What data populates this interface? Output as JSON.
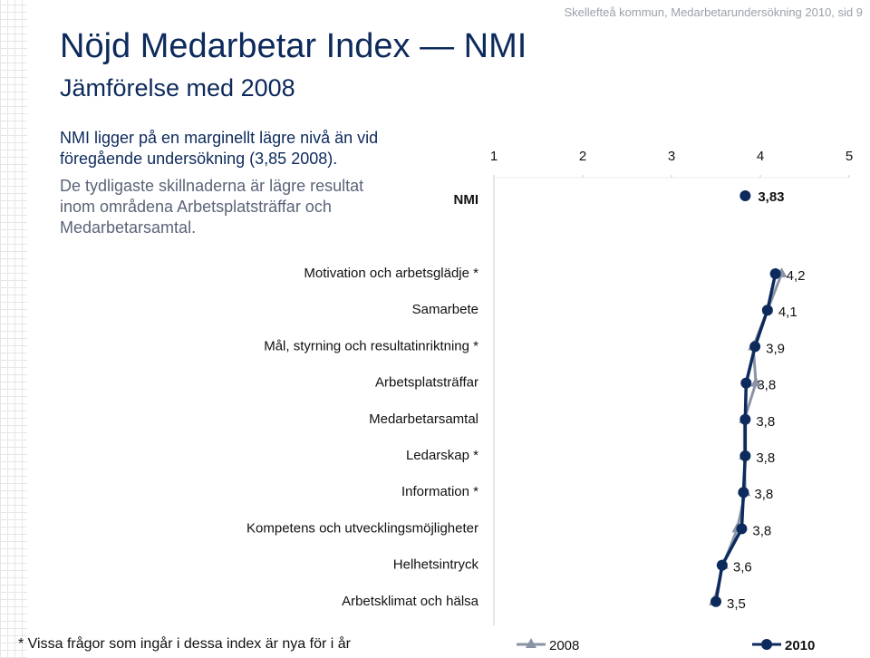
{
  "header": "Skellefteå kommun, Medarbetarundersökning 2010,  sid 9",
  "title": "Nöjd Medarbetar Index — NMI",
  "subtitle": "Jämförelse med 2008",
  "paragraphs": [
    "NMI ligger på en marginellt lägre nivå än vid föregående undersökning (3,85 2008).",
    "De tydligaste skillnaderna är lägre resultat inom områdena Arbetsplatsträffar och Medarbetarsamtal."
  ],
  "footnote": "* Vissa frågor som ingår i dessa index är nya för i år",
  "chart_data": {
    "type": "line",
    "xlim": [
      1,
      5
    ],
    "xticks": [
      1,
      2,
      3,
      4,
      5
    ],
    "nmi": {
      "label": "NMI",
      "value": 3.83,
      "value_label": "3,83",
      "color": "#0d2a5c"
    },
    "categories": [
      "Motivation och arbetsglädje *",
      "Samarbete",
      "Mål, styrning och resultatinriktning *",
      "Arbetsplatsträffar",
      "Medarbetarsamtal",
      "Ledarskap *",
      "Information *",
      "Kompetens och utvecklingsmöjligheter",
      "Helhetsintryck",
      "Arbetsklimat och hälsa"
    ],
    "series": [
      {
        "name": "2008",
        "color": "#8a94a6",
        "marker": "triangle",
        "values": [
          4.24,
          4.08,
          3.92,
          3.95,
          3.82,
          3.82,
          3.83,
          3.74,
          3.58,
          3.48
        ]
      },
      {
        "name": "2010",
        "color": "#0d2a5c",
        "marker": "circle",
        "values": [
          4.17,
          4.08,
          3.94,
          3.84,
          3.83,
          3.83,
          3.81,
          3.79,
          3.57,
          3.5
        ],
        "value_labels": [
          "4,2",
          "4,1",
          "3,9",
          "3,8",
          "3,8",
          "3,8",
          "3,8",
          "3,8",
          "3,6",
          "3,5"
        ]
      }
    ]
  }
}
